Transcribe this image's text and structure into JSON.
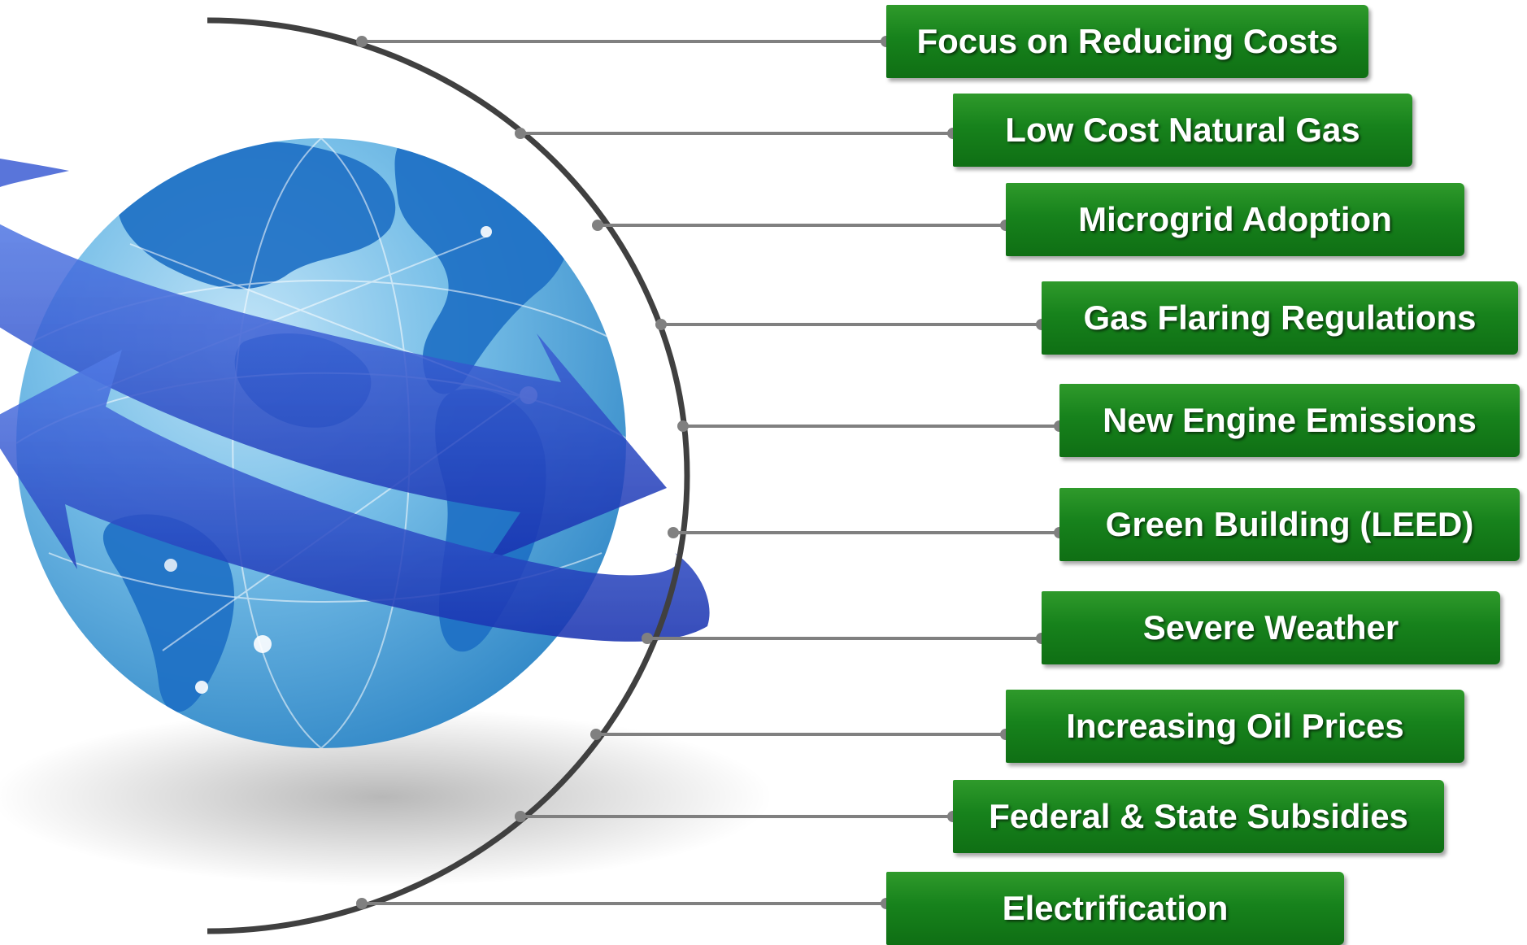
{
  "colors": {
    "box_fill": "#178a1c",
    "box_text": "#ffffff",
    "connector": "#808080",
    "arc": "#404040",
    "globe_ocean": "#4aa0d8",
    "globe_land": "#1d6fc4",
    "arrow": "#2040c8"
  },
  "globe": {
    "icon": "globe-with-arrows-icon"
  },
  "drivers": [
    {
      "label": "Focus on Reducing Costs"
    },
    {
      "label": "Low Cost Natural Gas"
    },
    {
      "label": "Microgrid Adoption"
    },
    {
      "label": "Gas Flaring Regulations"
    },
    {
      "label": "New Engine Emissions"
    },
    {
      "label": "Green Building (LEED)"
    },
    {
      "label": "Severe Weather"
    },
    {
      "label": "Increasing Oil Prices"
    },
    {
      "label": "Federal & State Subsidies"
    },
    {
      "label": "Electrification"
    }
  ]
}
